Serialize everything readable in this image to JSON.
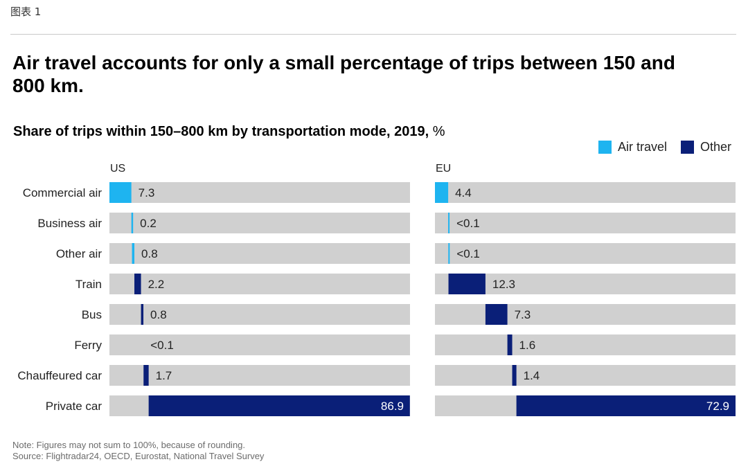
{
  "figure_label": "图表 1",
  "title": "Air travel accounts for only a small percentage of trips between 150 and 800 km.",
  "subtitle": "Share of trips within 150–800 km by transportation mode, 2019,",
  "unit": "%",
  "legend": [
    {
      "label": "Air travel",
      "color": "#1eb4f0"
    },
    {
      "label": "Other",
      "color": "#0a1f78"
    }
  ],
  "colors": {
    "track": "#d0d0d0",
    "air": "#1eb4f0",
    "other": "#0a1f78"
  },
  "chart_data": {
    "type": "bar",
    "subtype": "waterfall-share",
    "categories": [
      "Commercial air",
      "Business air",
      "Other air",
      "Train",
      "Bus",
      "Ferry",
      "Chauffeured car",
      "Private car"
    ],
    "category_kind": [
      "air",
      "air",
      "air",
      "other",
      "other",
      "other",
      "other",
      "other"
    ],
    "xlim": [
      0,
      100
    ],
    "series": [
      {
        "name": "US",
        "values": [
          7.3,
          0.2,
          0.8,
          2.2,
          0.8,
          0.05,
          1.7,
          86.9
        ],
        "labels": [
          "7.3",
          "0.2",
          "0.8",
          "2.2",
          "0.8",
          "<0.1",
          "1.7",
          "86.9"
        ]
      },
      {
        "name": "EU",
        "values": [
          4.4,
          0.05,
          0.05,
          12.3,
          7.3,
          1.6,
          1.4,
          72.9
        ],
        "labels": [
          "4.4",
          "<0.1",
          "<0.1",
          "12.3",
          "7.3",
          "1.6",
          "1.4",
          "72.9"
        ]
      }
    ]
  },
  "notes": {
    "note": "Note: Figures may not sum to 100%, because of rounding.",
    "source": "Source: Flightradar24, OECD, Eurostat, National Travel Survey"
  }
}
